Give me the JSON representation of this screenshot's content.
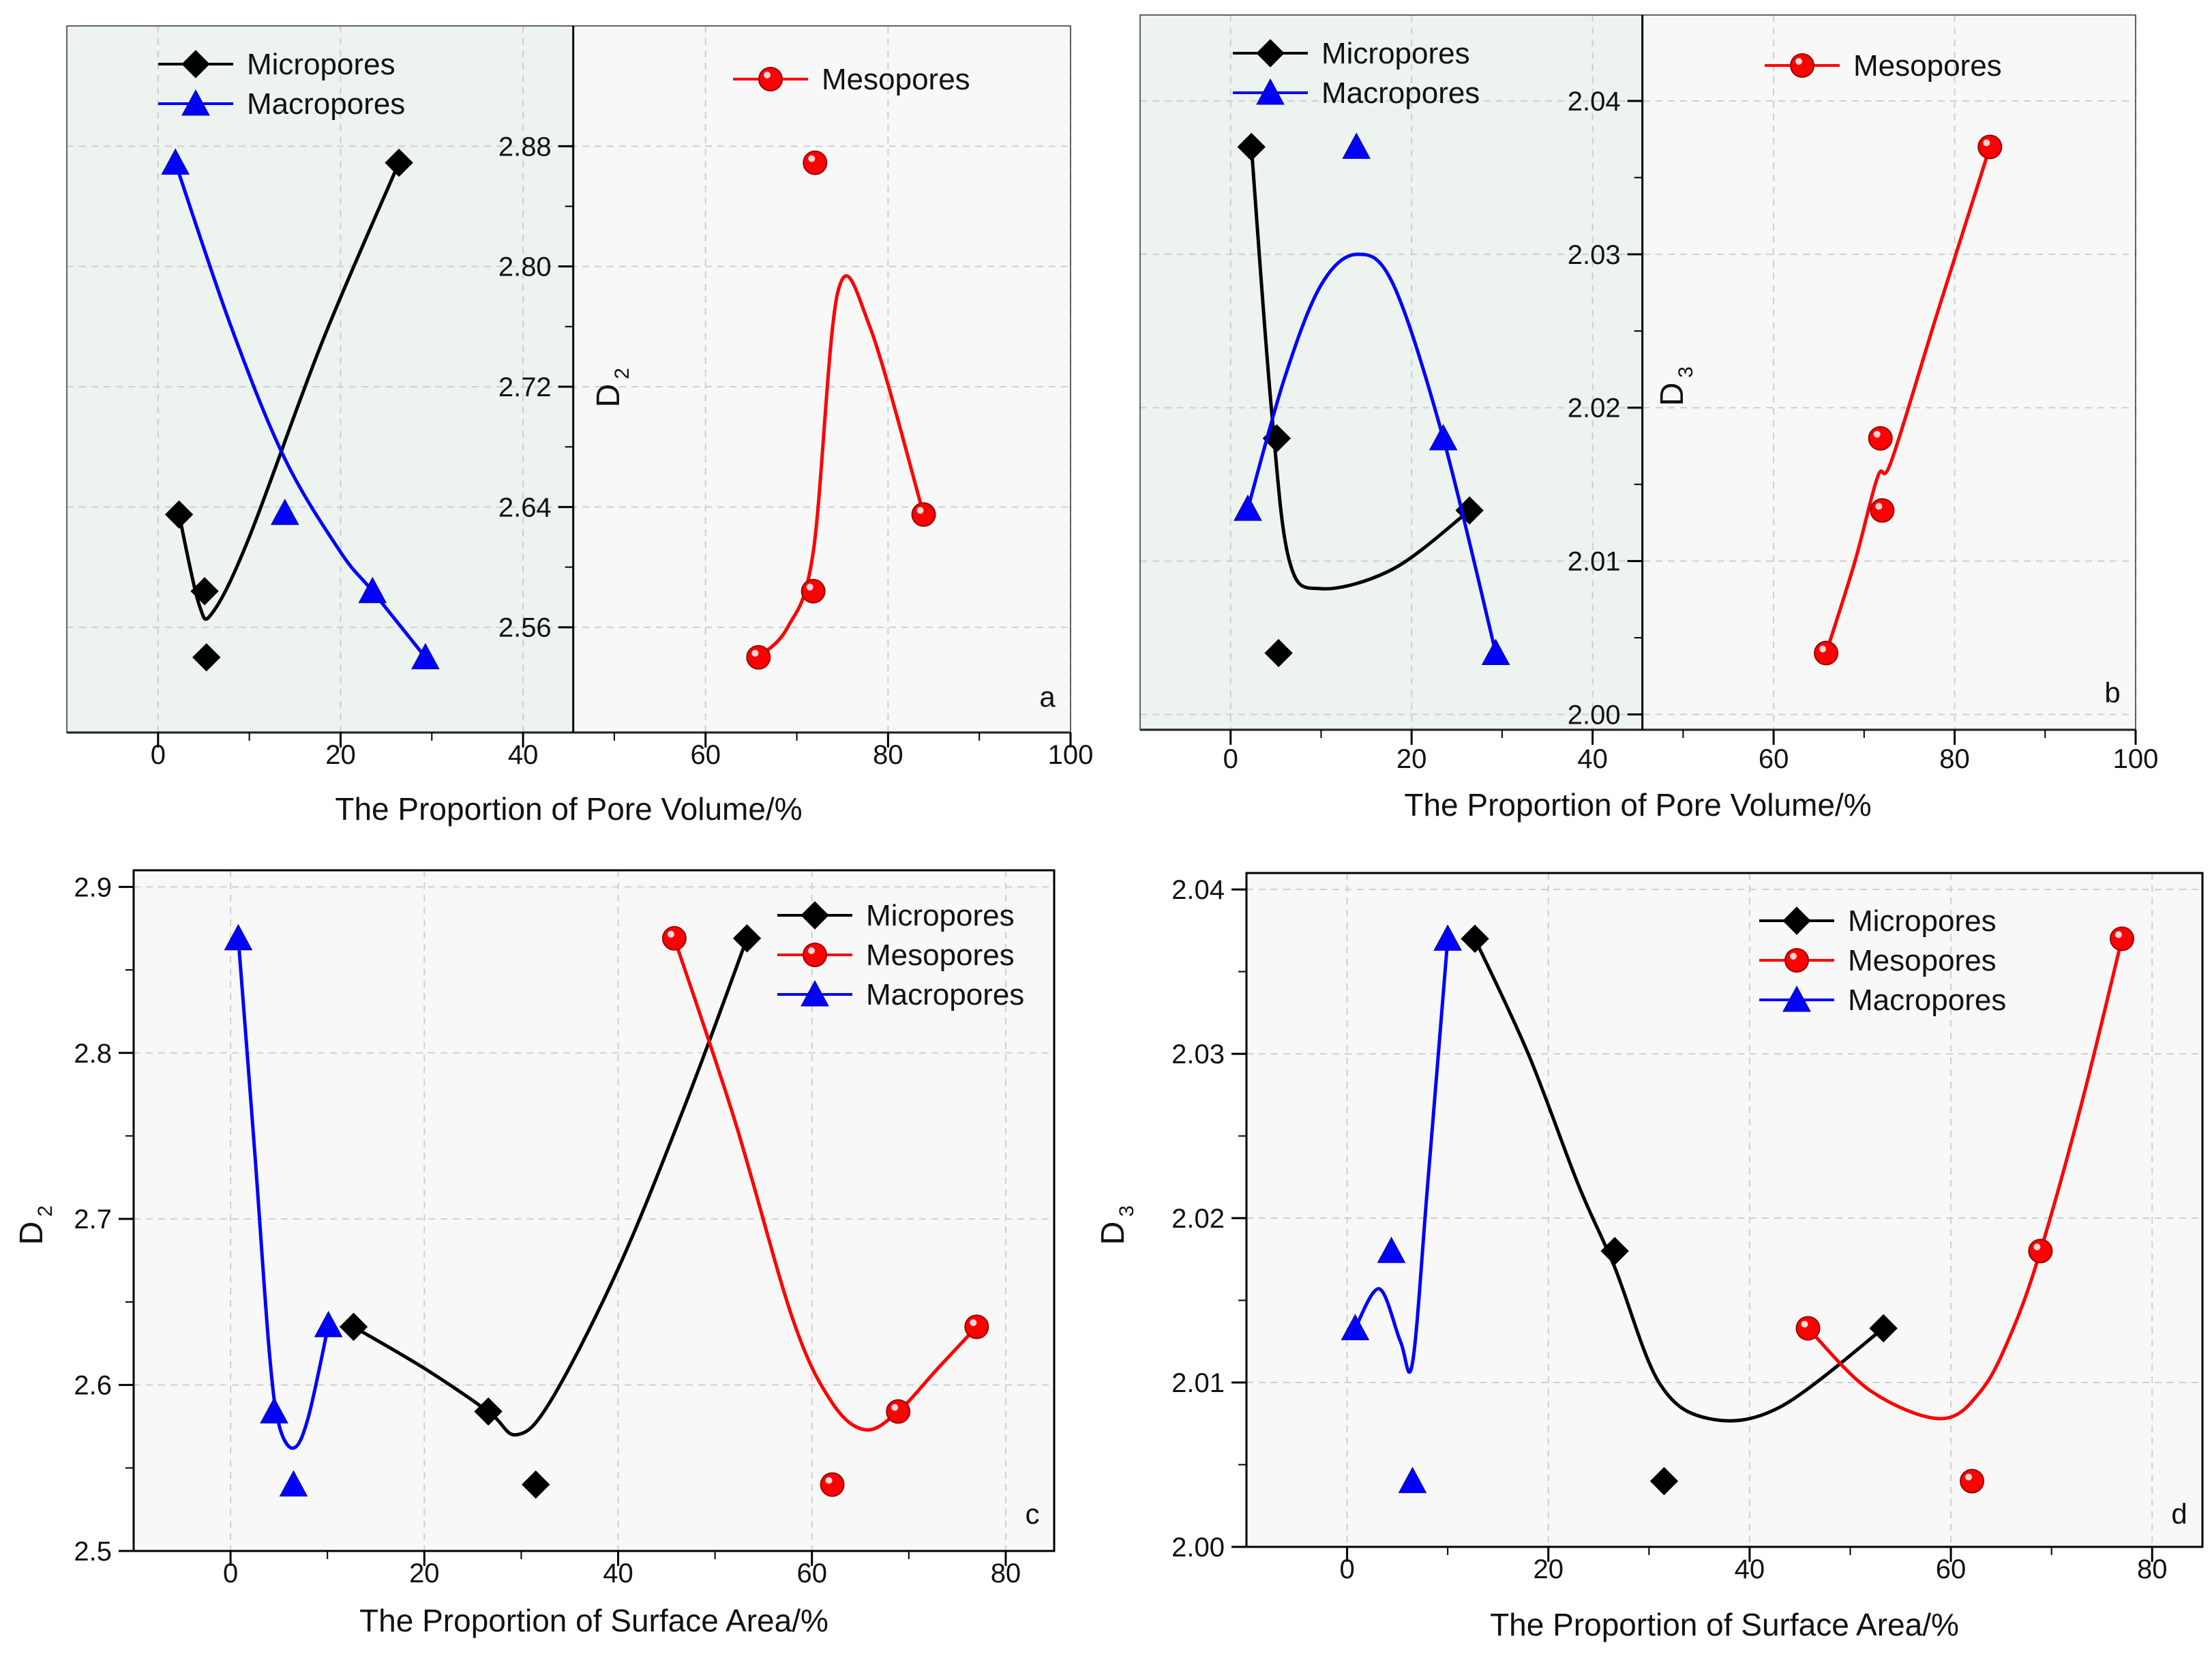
{
  "colors": {
    "micro": "#000000",
    "meso": "#ff0000",
    "macro": "#0000ff",
    "shadedBg": "#edf3ef",
    "plotBg": "#f8f8f8"
  },
  "chart_data": [
    {
      "panel": "a",
      "type": "scatter",
      "xlabel": "The Proportion of Pore Volume/%",
      "ylabel": "D",
      "ylabel_sub": "2",
      "xlim": [
        -10,
        100
      ],
      "ylim": [
        2.49,
        2.96
      ],
      "xticks": [
        0,
        20,
        40,
        60,
        80,
        100
      ],
      "xtick_labels": [
        "0",
        "20",
        "40",
        "60",
        "80",
        "100"
      ],
      "yticks": [
        2.56,
        2.64,
        2.72,
        2.8,
        2.88
      ],
      "ytick_labels": [
        "2.56",
        "2.64",
        "2.72",
        "2.80",
        "2.88"
      ],
      "split_x": 45.5,
      "legend_left": [
        {
          "key": "micro",
          "label": "Micropores"
        },
        {
          "key": "macro",
          "label": "Macropores"
        }
      ],
      "legend_right": [
        {
          "key": "meso",
          "label": "Mesopores"
        }
      ],
      "series": [
        {
          "key": "micro",
          "name": "Micropores",
          "marker": "diamond",
          "points": [
            [
              2.3,
              2.635
            ],
            [
              5.1,
              2.584
            ],
            [
              5.3,
              2.54
            ],
            [
              26.4,
              2.869
            ]
          ],
          "curve": [
            [
              2.3,
              2.635
            ],
            [
              4.5,
              2.575
            ],
            [
              6,
              2.57
            ],
            [
              10,
              2.62
            ],
            [
              18,
              2.75
            ],
            [
              26.4,
              2.869
            ]
          ]
        },
        {
          "key": "meso",
          "name": "Mesopores",
          "marker": "circle",
          "points": [
            [
              65.8,
              2.54
            ],
            [
              71.8,
              2.584
            ],
            [
              72.0,
              2.869
            ],
            [
              83.9,
              2.635
            ]
          ],
          "curve": [
            [
              65.8,
              2.54
            ],
            [
              69,
              2.56
            ],
            [
              71.8,
              2.61
            ],
            [
              74.5,
              2.783
            ],
            [
              78,
              2.76
            ],
            [
              83.9,
              2.635
            ]
          ]
        },
        {
          "key": "macro",
          "name": "Macropores",
          "marker": "triangle",
          "points": [
            [
              1.9,
              2.869
            ],
            [
              13.9,
              2.636
            ],
            [
              23.5,
              2.584
            ],
            [
              29.3,
              2.54
            ]
          ],
          "curve": [
            [
              1.9,
              2.869
            ],
            [
              8,
              2.76
            ],
            [
              13.9,
              2.672
            ],
            [
              20,
              2.61
            ],
            [
              23.5,
              2.584
            ],
            [
              29.3,
              2.54
            ]
          ]
        }
      ]
    },
    {
      "panel": "b",
      "type": "scatter",
      "xlabel": "The Proportion of Pore Volume/%",
      "ylabel": "D",
      "ylabel_sub": "3",
      "xlim": [
        -10,
        100
      ],
      "ylim": [
        1.999,
        2.0456
      ],
      "xticks": [
        0,
        20,
        40,
        60,
        80,
        100
      ],
      "xtick_labels": [
        "0",
        "20",
        "40",
        "60",
        "80",
        "100"
      ],
      "yticks": [
        2.0,
        2.01,
        2.02,
        2.03,
        2.04
      ],
      "ytick_labels": [
        "2.00",
        "2.01",
        "2.02",
        "2.03",
        "2.04"
      ],
      "split_x": 45.5,
      "legend_left": [
        {
          "key": "micro",
          "label": "Micropores"
        },
        {
          "key": "macro",
          "label": "Macropores"
        }
      ],
      "legend_right": [
        {
          "key": "meso",
          "label": "Mesopores"
        }
      ],
      "series": [
        {
          "key": "micro",
          "name": "Micropores",
          "marker": "diamond",
          "points": [
            [
              2.3,
              2.037
            ],
            [
              5.1,
              2.018
            ],
            [
              5.3,
              2.004
            ],
            [
              26.4,
              2.0133
            ]
          ],
          "curve": [
            [
              2.3,
              2.037
            ],
            [
              4.5,
              2.02
            ],
            [
              6.5,
              2.01
            ],
            [
              10,
              2.0082
            ],
            [
              18,
              2.0095
            ],
            [
              26.4,
              2.0133
            ]
          ]
        },
        {
          "key": "meso",
          "name": "Mesopores",
          "marker": "circle",
          "points": [
            [
              65.8,
              2.004
            ],
            [
              71.8,
              2.018
            ],
            [
              72.0,
              2.0133
            ],
            [
              83.9,
              2.037
            ]
          ],
          "curve": [
            [
              65.8,
              2.004
            ],
            [
              69,
              2.01
            ],
            [
              71.5,
              2.0155
            ],
            [
              73,
              2.0165
            ],
            [
              78,
              2.026
            ],
            [
              83.9,
              2.037
            ]
          ]
        },
        {
          "key": "macro",
          "name": "Macropores",
          "marker": "triangle",
          "points": [
            [
              1.9,
              2.0134
            ],
            [
              13.9,
              2.037
            ],
            [
              23.5,
              2.018
            ],
            [
              29.3,
              2.004
            ]
          ],
          "curve": [
            [
              1.9,
              2.0134
            ],
            [
              6,
              2.022
            ],
            [
              10,
              2.028
            ],
            [
              14,
              2.03
            ],
            [
              18,
              2.028
            ],
            [
              23.5,
              2.018
            ],
            [
              29.3,
              2.004
            ]
          ]
        }
      ]
    },
    {
      "panel": "c",
      "type": "scatter",
      "xlabel": "The Proportion of Surface Area/%",
      "ylabel": "D",
      "ylabel_sub": "2",
      "xlim": [
        -10,
        85
      ],
      "ylim": [
        2.5,
        2.91
      ],
      "xticks": [
        0,
        20,
        40,
        60,
        80
      ],
      "xtick_labels": [
        "0",
        "20",
        "40",
        "60",
        "80"
      ],
      "yticks": [
        2.5,
        2.6,
        2.7,
        2.8,
        2.9
      ],
      "ytick_labels": [
        "2.5",
        "2.6",
        "2.7",
        "2.8",
        "2.9"
      ],
      "legend": [
        {
          "key": "micro",
          "label": "Micropores"
        },
        {
          "key": "meso",
          "label": "Mesopores"
        },
        {
          "key": "macro",
          "label": "Macropores"
        }
      ],
      "series": [
        {
          "key": "micro",
          "name": "Micropores",
          "marker": "diamond",
          "points": [
            [
              12.7,
              2.635
            ],
            [
              26.6,
              2.584
            ],
            [
              31.5,
              2.54
            ],
            [
              53.3,
              2.869
            ]
          ],
          "curve": [
            [
              12.7,
              2.635
            ],
            [
              20,
              2.61
            ],
            [
              26.6,
              2.584
            ],
            [
              29.5,
              2.57
            ],
            [
              33,
              2.59
            ],
            [
              40,
              2.67
            ],
            [
              47,
              2.77
            ],
            [
              53.3,
              2.869
            ]
          ]
        },
        {
          "key": "meso",
          "name": "Mesopores",
          "marker": "circle",
          "points": [
            [
              45.8,
              2.869
            ],
            [
              62.1,
              2.54
            ],
            [
              68.9,
              2.584
            ],
            [
              77.0,
              2.635
            ]
          ],
          "curve": [
            [
              45.8,
              2.869
            ],
            [
              52,
              2.76
            ],
            [
              58,
              2.64
            ],
            [
              62,
              2.59
            ],
            [
              65.5,
              2.573
            ],
            [
              68.9,
              2.584
            ],
            [
              73,
              2.61
            ],
            [
              77,
              2.635
            ]
          ]
        },
        {
          "key": "macro",
          "name": "Macropores",
          "marker": "triangle",
          "points": [
            [
              0.8,
              2.869
            ],
            [
              4.5,
              2.584
            ],
            [
              6.5,
              2.54
            ],
            [
              10.1,
              2.636
            ]
          ],
          "curve": [
            [
              0.8,
              2.869
            ],
            [
              2.5,
              2.74
            ],
            [
              4,
              2.62
            ],
            [
              5,
              2.576
            ],
            [
              6.5,
              2.562
            ],
            [
              8,
              2.58
            ],
            [
              10.1,
              2.636
            ]
          ]
        }
      ]
    },
    {
      "panel": "d",
      "type": "scatter",
      "xlabel": "The Proportion of Surface Area/%",
      "ylabel": "D",
      "ylabel_sub": "3",
      "xlim": [
        -10,
        85
      ],
      "ylim": [
        2.0,
        2.041
      ],
      "xticks": [
        0,
        20,
        40,
        60,
        80
      ],
      "xtick_labels": [
        "0",
        "20",
        "40",
        "60",
        "80"
      ],
      "yticks": [
        2.0,
        2.01,
        2.02,
        2.03,
        2.04
      ],
      "ytick_labels": [
        "2.00",
        "2.01",
        "2.02",
        "2.03",
        "2.04"
      ],
      "legend": [
        {
          "key": "micro",
          "label": "Micropores"
        },
        {
          "key": "meso",
          "label": "Mesopores"
        },
        {
          "key": "macro",
          "label": "Macropores"
        }
      ],
      "series": [
        {
          "key": "micro",
          "name": "Micropores",
          "marker": "diamond",
          "points": [
            [
              12.7,
              2.037
            ],
            [
              26.6,
              2.018
            ],
            [
              31.5,
              2.004
            ],
            [
              53.3,
              2.0133
            ]
          ],
          "curve": [
            [
              12.7,
              2.037
            ],
            [
              18,
              2.03
            ],
            [
              23,
              2.022
            ],
            [
              26.6,
              2.017
            ],
            [
              31,
              2.01
            ],
            [
              36,
              2.0078
            ],
            [
              43,
              2.0085
            ],
            [
              53.3,
              2.0133
            ]
          ]
        },
        {
          "key": "meso",
          "name": "Mesopores",
          "marker": "circle",
          "points": [
            [
              45.8,
              2.0133
            ],
            [
              62.1,
              2.004
            ],
            [
              68.9,
              2.018
            ],
            [
              77.0,
              2.037
            ]
          ],
          "curve": [
            [
              45.8,
              2.0133
            ],
            [
              52,
              2.0095
            ],
            [
              59,
              2.0078
            ],
            [
              63,
              2.0095
            ],
            [
              66,
              2.013
            ],
            [
              68.9,
              2.018
            ],
            [
              73,
              2.027
            ],
            [
              77,
              2.037
            ]
          ]
        },
        {
          "key": "macro",
          "name": "Macropores",
          "marker": "triangle",
          "points": [
            [
              0.8,
              2.0133
            ],
            [
              4.4,
              2.018
            ],
            [
              6.5,
              2.004
            ],
            [
              10.0,
              2.037
            ]
          ],
          "curve": [
            [
              0.8,
              2.0133
            ],
            [
              3.2,
              2.0157
            ],
            [
              5.3,
              2.0125
            ],
            [
              6.5,
              2.0112
            ],
            [
              8,
              2.022
            ],
            [
              10,
              2.037
            ]
          ]
        }
      ]
    }
  ],
  "panel_labels": [
    "a",
    "b",
    "c",
    "d"
  ]
}
